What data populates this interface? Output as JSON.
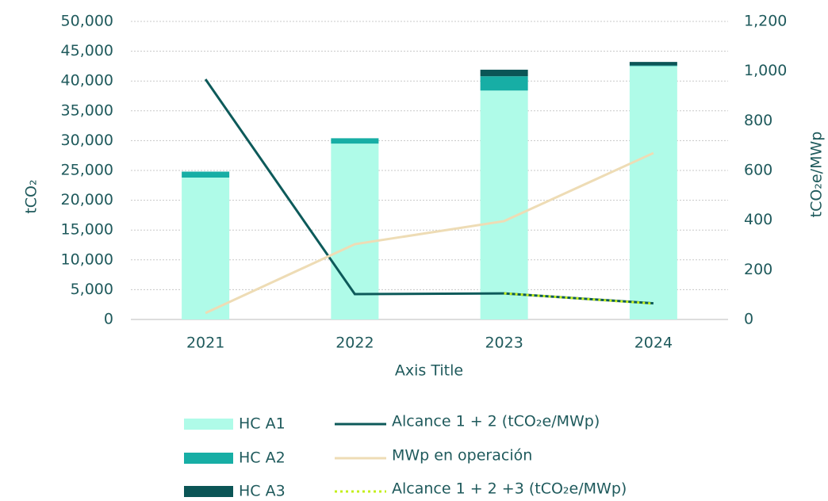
{
  "chart_data": {
    "type": "bar",
    "categories": [
      "2021",
      "2022",
      "2023",
      "2024"
    ],
    "series": [
      {
        "name": "HC A1",
        "color": "#affbe8",
        "values": [
          23800,
          29500,
          38400,
          42500
        ]
      },
      {
        "name": "HC A2",
        "color": "#17aea5",
        "values": [
          1000,
          900,
          2400,
          100
        ]
      },
      {
        "name": "HC A3",
        "color": "#0b5556",
        "values": [
          0,
          0,
          1100,
          600
        ]
      },
      {
        "name": "Alcance  1 + 2 (tCO₂e/MWp)",
        "type": "line",
        "axis": "y2",
        "color": "#0d5a5a",
        "values": [
          967,
          102,
          105,
          65
        ]
      },
      {
        "name": "MWp en operación",
        "type": "line",
        "axis": "y2",
        "color": "#eedcb5",
        "values": [
          26,
          303,
          396,
          670
        ]
      },
      {
        "name": "Alcance  1 + 2 +3 (tCO₂e/MWp)",
        "type": "line",
        "axis": "y2",
        "dashed": true,
        "color": "#c4ef1c",
        "values": [
          null,
          null,
          105,
          64
        ]
      }
    ],
    "ylabel": "tCO₂",
    "y2label": "tCO₂e/MWp",
    "xlabel": "Axis Title",
    "ylim": [
      0,
      50000
    ],
    "yticks": [
      0,
      {
        "value": 5000,
        "label": "5,000"
      },
      {
        "value": 10000,
        "label": "10,000"
      },
      {
        "value": 15000,
        "label": "15,000"
      },
      {
        "value": 20000,
        "label": "20,000"
      },
      {
        "value": 25000,
        "label": "25,000"
      },
      {
        "value": 30000,
        "label": "30,000"
      },
      {
        "value": 35000,
        "label": "35,000"
      },
      {
        "value": 40000,
        "label": "40,000"
      },
      {
        "value": 45000,
        "label": "45,000"
      },
      {
        "value": 50000,
        "label": "50,000"
      }
    ],
    "y2lim": [
      0,
      1200
    ],
    "y2ticks": [
      0,
      200,
      400,
      600,
      800,
      {
        "value": 1000,
        "label": "1,000"
      },
      {
        "value": 1200,
        "label": "1,200"
      }
    ],
    "grid": true,
    "legend": "bottom"
  }
}
